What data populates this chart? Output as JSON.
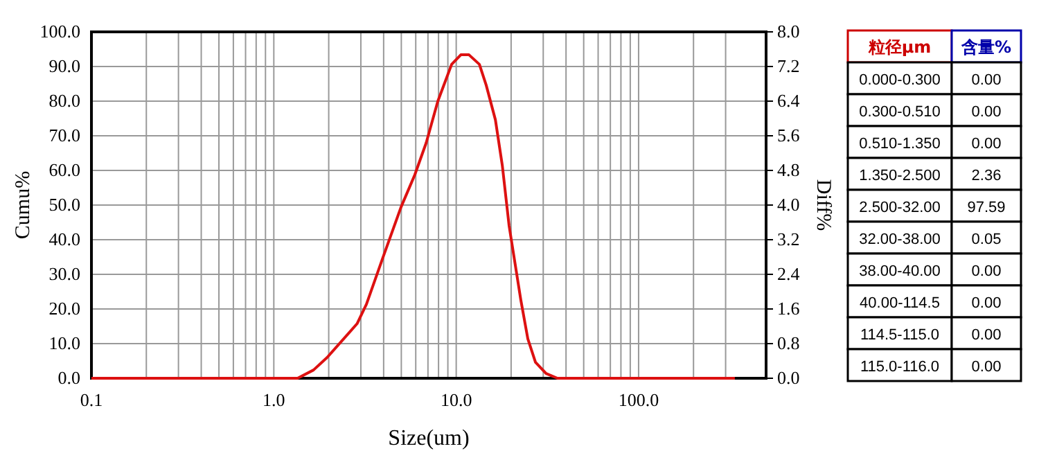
{
  "chart_data": [
    {
      "type": "line",
      "xlabel": "Size(um)",
      "ylabel": "Cumu%",
      "y2label": "Diff%",
      "log": "x",
      "grid": true,
      "xlim": [
        0.1,
        500
      ],
      "xticks": [
        0.1,
        {
          "value": 0.2,
          "label": null
        },
        {
          "value": 0.3,
          "label": null
        },
        {
          "value": 0.4,
          "label": null
        },
        {
          "value": 0.5,
          "label": null
        },
        {
          "value": 0.6,
          "label": null
        },
        {
          "value": 0.7,
          "label": null
        },
        {
          "value": 0.8,
          "label": null
        },
        {
          "value": 0.9,
          "label": null
        },
        {
          "value": 1,
          "label": "1.0"
        },
        {
          "value": 2,
          "label": null
        },
        {
          "value": 3,
          "label": null
        },
        {
          "value": 4,
          "label": null
        },
        {
          "value": 5,
          "label": null
        },
        {
          "value": 6,
          "label": null
        },
        {
          "value": 7,
          "label": null
        },
        {
          "value": 8,
          "label": null
        },
        {
          "value": 9,
          "label": null
        },
        {
          "value": 10,
          "label": "10.0"
        },
        {
          "value": 20,
          "label": null
        },
        {
          "value": 30,
          "label": null
        },
        {
          "value": 40,
          "label": null
        },
        {
          "value": 50,
          "label": null
        },
        {
          "value": 60,
          "label": null
        },
        {
          "value": 70,
          "label": null
        },
        {
          "value": 80,
          "label": null
        },
        {
          "value": 90,
          "label": null
        },
        {
          "value": 100,
          "label": "100.0"
        },
        {
          "value": 200,
          "label": null
        },
        {
          "value": 300,
          "label": null
        }
      ],
      "ylim": [
        0,
        100
      ],
      "yticks": [
        {
          "value": 0,
          "label": "0.0"
        },
        {
          "value": 10,
          "label": "10.0"
        },
        {
          "value": 20,
          "label": "20.0"
        },
        {
          "value": 30,
          "label": "30.0"
        },
        {
          "value": 40,
          "label": "40.0"
        },
        {
          "value": 50,
          "label": "50.0"
        },
        {
          "value": 60,
          "label": "60.0"
        },
        {
          "value": 70,
          "label": "70.0"
        },
        {
          "value": 80,
          "label": "80.0"
        },
        {
          "value": 90,
          "label": "90.0"
        },
        {
          "value": 100,
          "label": "100.0"
        }
      ],
      "y2lim": [
        0,
        8
      ],
      "y2ticks": [
        {
          "value": 0,
          "label": "0.0"
        },
        0.8,
        1.6,
        2.4,
        3.2,
        {
          "value": 4,
          "label": "4.0"
        },
        4.8,
        5.6,
        6.4,
        7.2,
        {
          "value": 8,
          "label": "8.0"
        }
      ],
      "series": [
        {
          "color": "#dd1111",
          "axis": "y2",
          "x": [
            0.1,
            1.35,
            1.65,
            1.96,
            2.86,
            3.22,
            3.95,
            4.98,
            5.93,
            6.85,
            7.93,
            9.44,
            10.6,
            11.75,
            13.4,
            14.6,
            16.4,
            17.9,
            19.5,
            22.6,
            24.7,
            27.2,
            31.1,
            35.9,
            337
          ],
          "values": [
            0,
            0,
            0.19,
            0.48,
            1.26,
            1.71,
            2.77,
            3.95,
            4.7,
            5.44,
            6.4,
            7.25,
            7.47,
            7.47,
            7.25,
            6.77,
            5.97,
            4.91,
            3.52,
            1.81,
            0.91,
            0.37,
            0.11,
            0,
            0
          ]
        }
      ]
    },
    {
      "type": "other",
      "annotations": [
        "粒径μm",
        "含量%"
      ],
      "categories": [
        "0.000-0.300",
        "0.300-0.510",
        "0.510-1.350",
        "1.350-2.500",
        "2.500-32.00",
        "32.00-38.00",
        "38.00-40.00",
        "40.00-114.5",
        "114.5-115.0",
        "115.0-116.0"
      ],
      "value_labels": [
        "0.00",
        "0.00",
        "0.00",
        "2.36",
        "97.59",
        "0.05",
        "0.00",
        "0.00",
        "0.00",
        "0.00"
      ]
    }
  ]
}
